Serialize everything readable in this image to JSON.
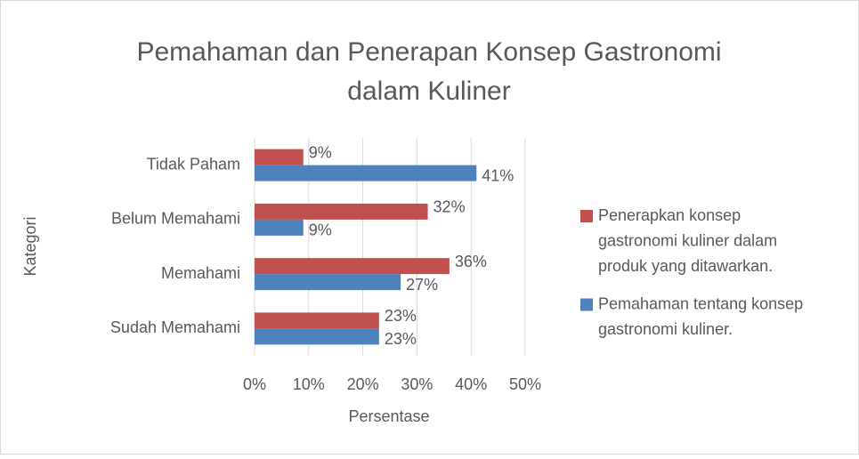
{
  "chart_data": {
    "type": "hbar",
    "title": [
      "Pemahaman dan Penerapan Konsep Gastronomi",
      "dalam Kuliner"
    ],
    "x_label": "Persentase",
    "y_label": "Kategori",
    "categories": [
      "Tidak Paham",
      "Belum Memahami",
      "Memahami",
      "Sudah Memahami"
    ],
    "series": [
      {
        "name": "Penerapkan konsep gastronomi kuliner dalam produk yang ditawarkan.",
        "color": "#c0504d",
        "values": [
          9,
          32,
          36,
          23
        ],
        "value_labels": [
          "9%",
          "32%",
          "36%",
          "23%"
        ]
      },
      {
        "name": "Pemahaman tentang konsep gastronomi kuliner.",
        "color": "#4f81bd",
        "values": [
          41,
          9,
          27,
          23
        ],
        "value_labels": [
          "41%",
          "9%",
          "27%",
          "23%"
        ]
      }
    ],
    "xlim": [
      0,
      50
    ],
    "xticks": [
      {
        "value": 0,
        "label": "0%"
      },
      {
        "value": 10,
        "label": "10%"
      },
      {
        "value": 20,
        "label": "20%"
      },
      {
        "value": 30,
        "label": "30%"
      },
      {
        "value": 40,
        "label": "40%"
      },
      {
        "value": 50,
        "label": "50%"
      }
    ],
    "grid": true,
    "legend": "right"
  }
}
